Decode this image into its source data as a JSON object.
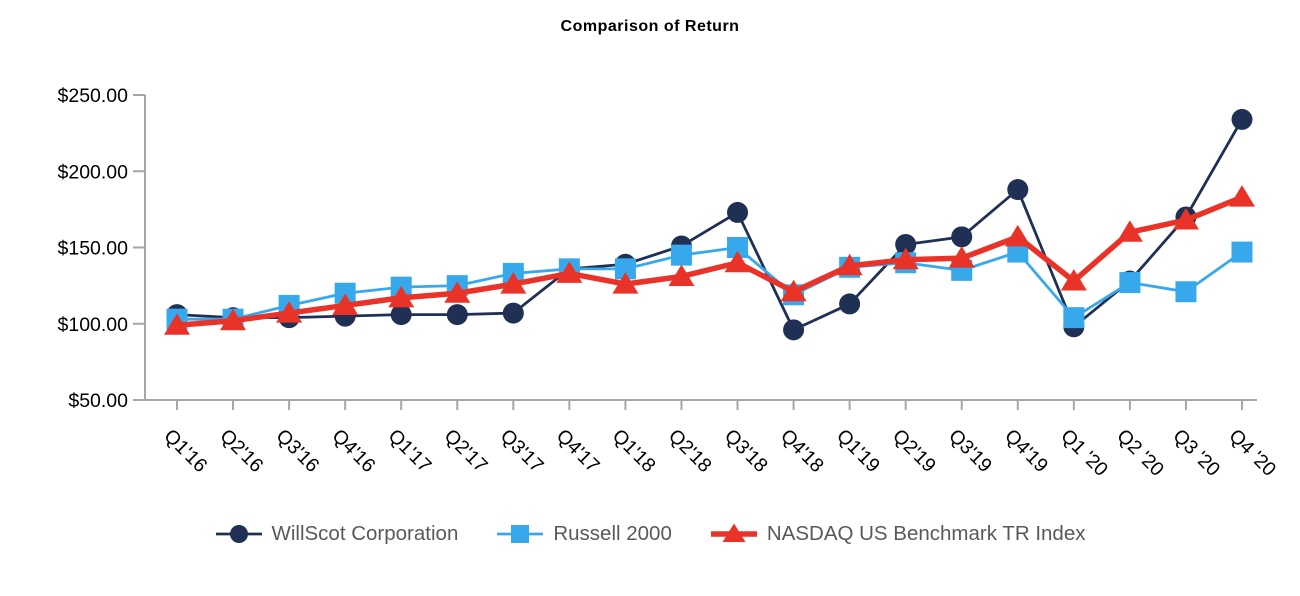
{
  "chart_data": {
    "type": "line",
    "title": "Comparison of Return",
    "categories": [
      "Q1'16",
      "Q2'16",
      "Q3'16",
      "Q4'16",
      "Q1'17",
      "Q2'17",
      "Q3'17",
      "Q4'17",
      "Q1'18",
      "Q2'18",
      "Q3'18",
      "Q4'18",
      "Q1'19",
      "Q2'19",
      "Q3'19",
      "Q4'19",
      "Q1 '20",
      "Q2 '20",
      "Q3 '20",
      "Q4 '20"
    ],
    "series": [
      {
        "name": "WillScot Corporation",
        "marker": "circle",
        "color": "#203055",
        "line_width": 2.8,
        "values": [
          106,
          104,
          104,
          105,
          106,
          106,
          107,
          136,
          139,
          151,
          173,
          96,
          113,
          152,
          157,
          188,
          98,
          128,
          170,
          234
        ]
      },
      {
        "name": "Russell 2000",
        "marker": "square",
        "color": "#38a8ec",
        "line_width": 2.8,
        "values": [
          103,
          103,
          112,
          120,
          124,
          125,
          133,
          136,
          136,
          145,
          150,
          119,
          137,
          140,
          135,
          147,
          104,
          127,
          121,
          147
        ]
      },
      {
        "name": "NASDAQ US Benchmark TR Index",
        "marker": "triangle",
        "color": "#ea3328",
        "line_width": 5.5,
        "values": [
          99,
          102,
          107,
          112,
          117,
          120,
          126,
          133,
          126,
          131,
          140,
          121,
          138,
          142,
          143,
          157,
          128,
          160,
          168,
          183
        ]
      }
    ],
    "y_axis": {
      "min": 50,
      "max": 250,
      "step": 50,
      "tick_labels": [
        "$250.00",
        "$200.00",
        "$150.00",
        "$100.00",
        "$50.00"
      ]
    },
    "x_axis": {
      "label_rotation_deg": 45
    },
    "legend": {
      "position": "bottom"
    },
    "grid": false,
    "axis_color": "#a6a6a6",
    "axis_text_color": "#000000",
    "legend_text_color": "#595959"
  }
}
